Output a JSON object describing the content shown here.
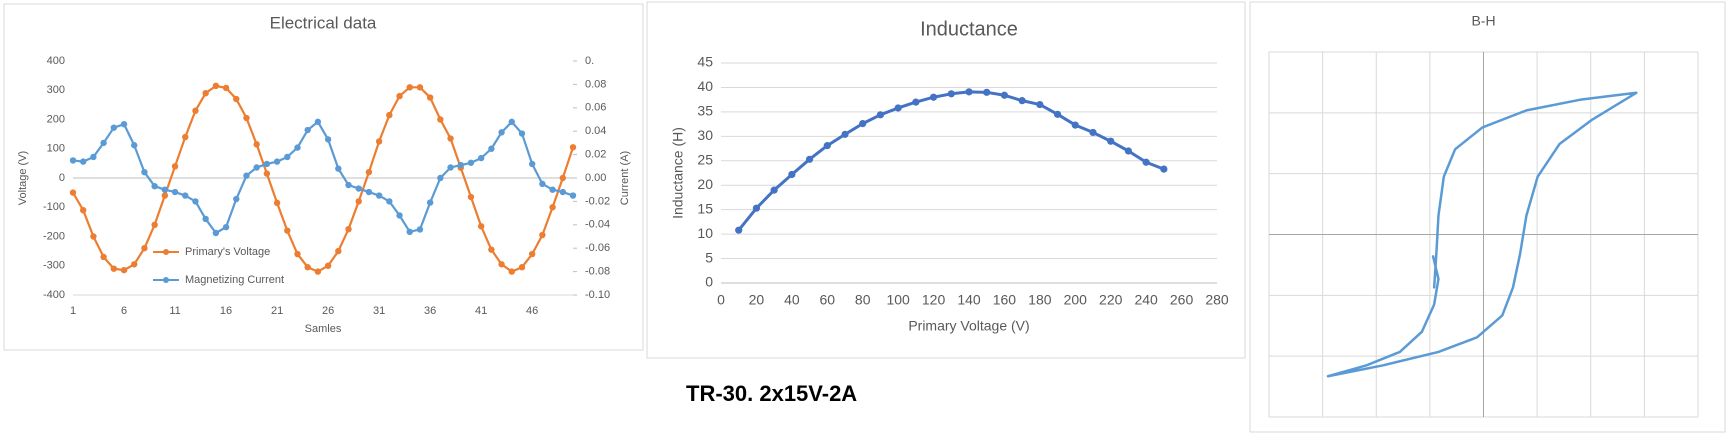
{
  "caption": "TR-30. 2x15V-2A",
  "chart_data": [
    {
      "type": "line",
      "title": "Electrical data",
      "x_label": "Samles",
      "y_label": "Voltage (V)",
      "y2_label": "Current (A)",
      "categories": [
        1,
        null,
        null,
        null,
        null,
        6,
        null,
        null,
        null,
        null,
        11,
        null,
        null,
        null,
        null,
        16,
        null,
        null,
        null,
        null,
        21,
        null,
        null,
        null,
        null,
        26,
        null,
        null,
        null,
        null,
        31,
        null,
        null,
        null,
        null,
        36,
        null,
        null,
        null,
        null,
        41,
        null,
        null,
        null,
        null,
        46,
        null,
        null,
        null,
        null
      ],
      "series": [
        {
          "name": "Primary's Voltage",
          "color": "#ed7d31",
          "axis": "y",
          "values": [
            -50,
            -110,
            -200,
            -270,
            -310,
            -315,
            -295,
            -240,
            -160,
            -60,
            40,
            140,
            230,
            290,
            315,
            308,
            270,
            205,
            115,
            15,
            -85,
            -180,
            -260,
            -305,
            -320,
            -300,
            -250,
            -175,
            -80,
            20,
            125,
            215,
            280,
            310,
            310,
            275,
            200,
            135,
            35,
            -65,
            -165,
            -245,
            -295,
            -320,
            -305,
            -260,
            -195,
            -100,
            0,
            105
          ]
        },
        {
          "name": "Magnetizing Current",
          "color": "#5b9bd5",
          "axis": "y2",
          "values": [
            0.015,
            0.014,
            0.018,
            0.03,
            0.043,
            0.046,
            0.028,
            0.005,
            -0.007,
            -0.01,
            -0.012,
            -0.015,
            -0.02,
            -0.035,
            -0.047,
            -0.042,
            -0.018,
            0.002,
            0.009,
            0.012,
            0.014,
            0.018,
            0.026,
            0.041,
            0.048,
            0.033,
            0.008,
            -0.006,
            -0.009,
            -0.012,
            -0.015,
            -0.02,
            -0.032,
            -0.046,
            -0.044,
            -0.021,
            0,
            0.009,
            0.011,
            0.013,
            0.017,
            0.025,
            0.039,
            0.048,
            0.038,
            0.012,
            -0.005,
            -0.01,
            -0.012,
            -0.015
          ]
        }
      ],
      "ylim": [
        -400,
        400
      ],
      "yticks": [
        -400,
        -300,
        -200,
        -100,
        0,
        100,
        200,
        300,
        400
      ],
      "y2lim": [
        -0.1,
        0.1
      ],
      "y2ticks": [
        {
          "value": -0.1,
          "label": "-0.10"
        },
        -0.08,
        -0.06,
        -0.04,
        -0.02,
        {
          "value": 0,
          "label": "0.00"
        },
        0.02,
        0.04,
        0.06,
        0.08,
        {
          "value": 0.1,
          "label": "0."
        }
      ],
      "grid": false,
      "legend": "lower left"
    },
    {
      "type": "line",
      "title": "Inductance",
      "x_label": "Primary Voltage (V)",
      "y_label": "Inductance (H)",
      "x": [
        10,
        20,
        30,
        40,
        50,
        60,
        70,
        80,
        90,
        100,
        110,
        120,
        130,
        140,
        150,
        160,
        170,
        180,
        190,
        200,
        210,
        220,
        230,
        240,
        250
      ],
      "series": [
        {
          "color": "#4472c4",
          "values": [
            10.8,
            15.3,
            19,
            22.2,
            25.3,
            28.1,
            30.4,
            32.6,
            34.4,
            35.8,
            37,
            38,
            38.7,
            39.1,
            39,
            38.4,
            37.3,
            36.5,
            34.5,
            32.3,
            30.8,
            29,
            27,
            24.7,
            23.3
          ]
        }
      ],
      "xlim": [
        0,
        280
      ],
      "xticks": [
        0,
        20,
        40,
        60,
        80,
        100,
        120,
        140,
        160,
        180,
        200,
        220,
        240,
        260,
        280
      ],
      "ylim": [
        0,
        45
      ],
      "yticks": [
        0,
        5,
        10,
        15,
        20,
        25,
        30,
        35,
        40,
        45
      ],
      "grid": true
    },
    {
      "type": "curve",
      "title": "B-H",
      "x": [
        -0.94,
        -0.84,
        -0.92,
        -1.15,
        -1.56,
        -2.18,
        -2.9,
        -1.87,
        -0.84,
        -0.12,
        0.35,
        0.55,
        0.68,
        0.8,
        1.01,
        1.42,
        2.03,
        2.85,
        1.83,
        0.8,
        -0.02,
        -0.53,
        -0.74,
        -0.84,
        -0.88,
        -0.92
      ],
      "series": [
        {
          "color": "#5b9bd5",
          "values": [
            -0.36,
            -0.73,
            -1.15,
            -1.6,
            -1.93,
            -2.15,
            -2.33,
            -2.15,
            -1.93,
            -1.69,
            -1.33,
            -0.87,
            -0.33,
            0.31,
            0.95,
            1.49,
            1.89,
            2.33,
            2.22,
            2.04,
            1.76,
            1.4,
            0.95,
            0.31,
            -0.33,
            -0.87
          ]
        }
      ],
      "xlim": [
        -4,
        4
      ],
      "xticks": [
        -4,
        -3,
        -2,
        -1,
        0,
        1,
        2,
        3,
        4
      ],
      "ylim": [
        -3,
        3
      ],
      "yticks": [
        -3,
        -2,
        -1,
        0,
        1,
        2,
        3
      ],
      "grid": true
    }
  ]
}
